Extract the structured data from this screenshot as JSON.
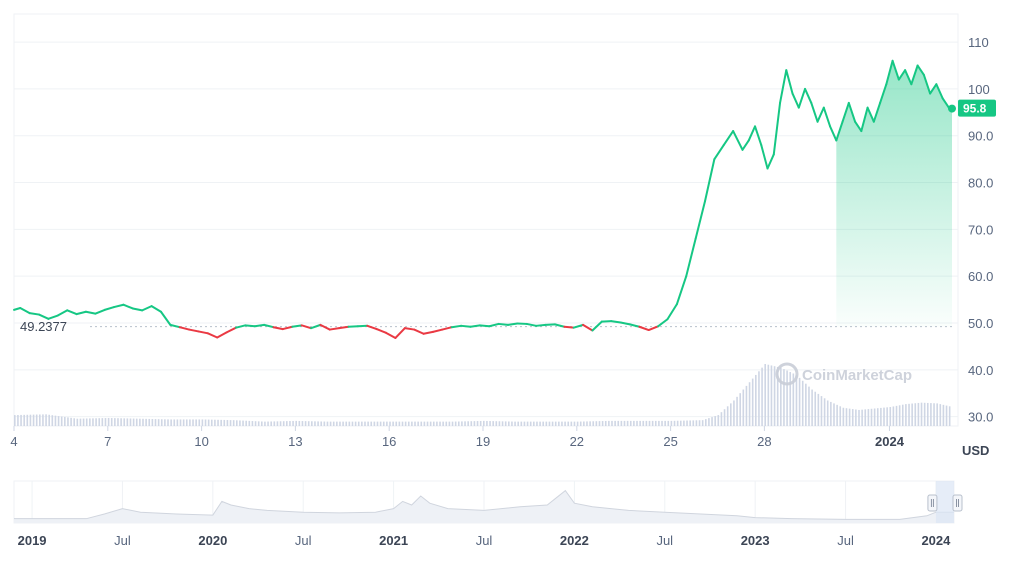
{
  "chart_data": {
    "type": "line",
    "unit_label": "USD",
    "watermark": "CoinMarketCap",
    "baseline": {
      "value": 49.2377,
      "label": "49.2377"
    },
    "current": {
      "value": 95.8,
      "label": "95.8"
    },
    "ylim": [
      28,
      116
    ],
    "y_ticks": [
      {
        "value": 110,
        "label": "110"
      },
      {
        "value": 100,
        "label": "100"
      },
      {
        "value": 90,
        "label": "90.0"
      },
      {
        "value": 80,
        "label": "80.0"
      },
      {
        "value": 70,
        "label": "70.0"
      },
      {
        "value": 60,
        "label": "60.0"
      },
      {
        "value": 50,
        "label": "50.0"
      },
      {
        "value": 40,
        "label": "40.0"
      },
      {
        "value": 30,
        "label": "30.0"
      }
    ],
    "x_ticks": [
      {
        "label": "4",
        "pos": 0.5,
        "bold": false
      },
      {
        "label": "7",
        "pos": 3.5,
        "bold": false
      },
      {
        "label": "10",
        "pos": 6.5,
        "bold": false
      },
      {
        "label": "13",
        "pos": 9.5,
        "bold": false
      },
      {
        "label": "16",
        "pos": 12.5,
        "bold": false
      },
      {
        "label": "19",
        "pos": 15.5,
        "bold": false
      },
      {
        "label": "22",
        "pos": 18.5,
        "bold": false
      },
      {
        "label": "25",
        "pos": 21.5,
        "bold": false
      },
      {
        "label": "28",
        "pos": 24.5,
        "bold": false
      },
      {
        "label": "2024",
        "pos": 28.5,
        "bold": true
      }
    ],
    "x_range": [
      0.5,
      30.5
    ],
    "series": [
      {
        "x": [
          0.5,
          0.7,
          1.0,
          1.3,
          1.6,
          1.9,
          2.2,
          2.5,
          2.8,
          3.1,
          3.4,
          3.7,
          4.0,
          4.3,
          4.6,
          4.9,
          5.2,
          5.5,
          5.8,
          6.1,
          6.4,
          6.7,
          7.0,
          7.3,
          7.6,
          7.9,
          8.2,
          8.5,
          8.8,
          9.1,
          9.4,
          9.7,
          10.0,
          10.3,
          10.6,
          10.9,
          11.2,
          11.5,
          11.8,
          12.1,
          12.4,
          12.7,
          13.0,
          13.3,
          13.6,
          13.9,
          14.2,
          14.5,
          14.8,
          15.1,
          15.4,
          15.7,
          16.0,
          16.3,
          16.6,
          16.9,
          17.2,
          17.5,
          17.8,
          18.1,
          18.4,
          18.7,
          19.0,
          19.3,
          19.6,
          19.9,
          20.2,
          20.5,
          20.8,
          21.1,
          21.4,
          21.7,
          22.0,
          22.3,
          22.6,
          22.9,
          23.2,
          23.5,
          23.8,
          24.0,
          24.2,
          24.4,
          24.6,
          24.8,
          25.0,
          25.2,
          25.4,
          25.6,
          25.8,
          26.0,
          26.2,
          26.4,
          26.6,
          26.8,
          27.0,
          27.2,
          27.4,
          27.6,
          27.8,
          28.0,
          28.2,
          28.4,
          28.6,
          28.8,
          29.0,
          29.2,
          29.4,
          29.6,
          29.8,
          30.0,
          30.2,
          30.4,
          30.5
        ],
        "values": [
          52.8,
          53.2,
          52.1,
          51.8,
          50.9,
          51.6,
          52.7,
          51.9,
          52.4,
          52.0,
          52.8,
          53.4,
          53.9,
          53.1,
          52.7,
          53.6,
          52.4,
          49.6,
          49.1,
          48.6,
          48.2,
          47.8,
          46.9,
          48.0,
          49.0,
          49.5,
          49.3,
          49.6,
          49.1,
          48.7,
          49.2,
          49.5,
          48.9,
          49.6,
          48.6,
          48.9,
          49.2,
          49.3,
          49.4,
          48.7,
          47.9,
          46.8,
          48.9,
          48.6,
          47.7,
          48.1,
          48.6,
          49.1,
          49.4,
          49.2,
          49.5,
          49.3,
          49.8,
          49.6,
          49.9,
          49.8,
          49.4,
          49.6,
          49.7,
          49.2,
          49.0,
          49.6,
          48.4,
          50.3,
          50.4,
          50.1,
          49.7,
          49.2,
          48.5,
          49.3,
          50.8,
          54.0,
          60.0,
          68.0,
          76.0,
          85.0,
          88.0,
          91.0,
          87.0,
          89.0,
          92.0,
          88.0,
          83.0,
          86.0,
          97.0,
          104.0,
          99.0,
          96.0,
          100.0,
          97.0,
          93.0,
          96.0,
          92.0,
          89.0,
          93.0,
          97.0,
          93.0,
          91.0,
          96.0,
          93.0,
          97.0,
          101.0,
          106.0,
          102.0,
          104.0,
          101.0,
          105.0,
          103.0,
          99.0,
          101.0,
          98.0,
          96.0,
          95.8
        ]
      }
    ],
    "volume": {
      "x": [
        0.5,
        1.5,
        2.5,
        3.5,
        4.5,
        5.5,
        6.5,
        7.5,
        8.5,
        9.5,
        10.5,
        11.5,
        12.5,
        13.5,
        14.5,
        15.5,
        16.5,
        17.5,
        18.5,
        19.5,
        20.5,
        21.5,
        22.5,
        23.0,
        23.5,
        24.0,
        24.5,
        25.0,
        25.5,
        26.0,
        26.5,
        27.0,
        27.5,
        28.0,
        28.5,
        29.0,
        29.5,
        30.0,
        30.5
      ],
      "values": [
        1.5,
        1.6,
        1.0,
        1.1,
        1.0,
        0.9,
        0.9,
        0.8,
        0.6,
        0.7,
        0.6,
        0.6,
        0.6,
        0.6,
        0.6,
        0.7,
        0.6,
        0.6,
        0.6,
        0.7,
        0.7,
        0.7,
        0.8,
        1.5,
        3.5,
        6.0,
        8.5,
        8.0,
        7.0,
        5.0,
        3.5,
        2.5,
        2.2,
        2.4,
        2.6,
        3.0,
        3.2,
        3.1,
        2.6
      ]
    },
    "navigator": {
      "ticks": [
        {
          "label": "2019",
          "pos": 0.0,
          "bold": true
        },
        {
          "label": "Jul",
          "pos": 0.5,
          "bold": false
        },
        {
          "label": "2020",
          "pos": 1.0,
          "bold": true
        },
        {
          "label": "Jul",
          "pos": 1.5,
          "bold": false
        },
        {
          "label": "2021",
          "pos": 2.0,
          "bold": true
        },
        {
          "label": "Jul",
          "pos": 2.5,
          "bold": false
        },
        {
          "label": "2022",
          "pos": 3.0,
          "bold": true
        },
        {
          "label": "Jul",
          "pos": 3.5,
          "bold": false
        },
        {
          "label": "2023",
          "pos": 4.0,
          "bold": true
        },
        {
          "label": "Jul",
          "pos": 4.5,
          "bold": false
        },
        {
          "label": "2024",
          "pos": 5.0,
          "bold": true
        }
      ],
      "range": [
        -0.1,
        5.1
      ],
      "x": [
        -0.1,
        0.1,
        0.3,
        0.4,
        0.5,
        0.6,
        0.8,
        1.0,
        1.05,
        1.1,
        1.2,
        1.3,
        1.5,
        1.7,
        1.9,
        2.0,
        2.05,
        2.1,
        2.15,
        2.2,
        2.3,
        2.5,
        2.7,
        2.85,
        2.9,
        2.95,
        3.0,
        3.1,
        3.3,
        3.5,
        3.7,
        3.9,
        4.0,
        4.2,
        4.5,
        4.8,
        4.95,
        5.0,
        5.1
      ],
      "values": [
        0.12,
        0.12,
        0.12,
        0.25,
        0.4,
        0.3,
        0.25,
        0.22,
        0.6,
        0.5,
        0.4,
        0.35,
        0.3,
        0.28,
        0.3,
        0.4,
        0.6,
        0.5,
        0.75,
        0.55,
        0.4,
        0.35,
        0.45,
        0.5,
        0.7,
        0.9,
        0.55,
        0.45,
        0.35,
        0.3,
        0.25,
        0.2,
        0.15,
        0.12,
        0.1,
        0.1,
        0.2,
        0.3,
        0.3
      ],
      "window": [
        5.0,
        5.1
      ]
    },
    "colors": {
      "up": "#16c784",
      "down": "#ea3943",
      "grid": "#eff2f5",
      "volume": "#cfd6e4",
      "baseline": "#b8c0cc",
      "nav_line": "#d0d5de",
      "nav_fill": "#eef1f6",
      "nav_window": "#dbe6f5"
    }
  }
}
